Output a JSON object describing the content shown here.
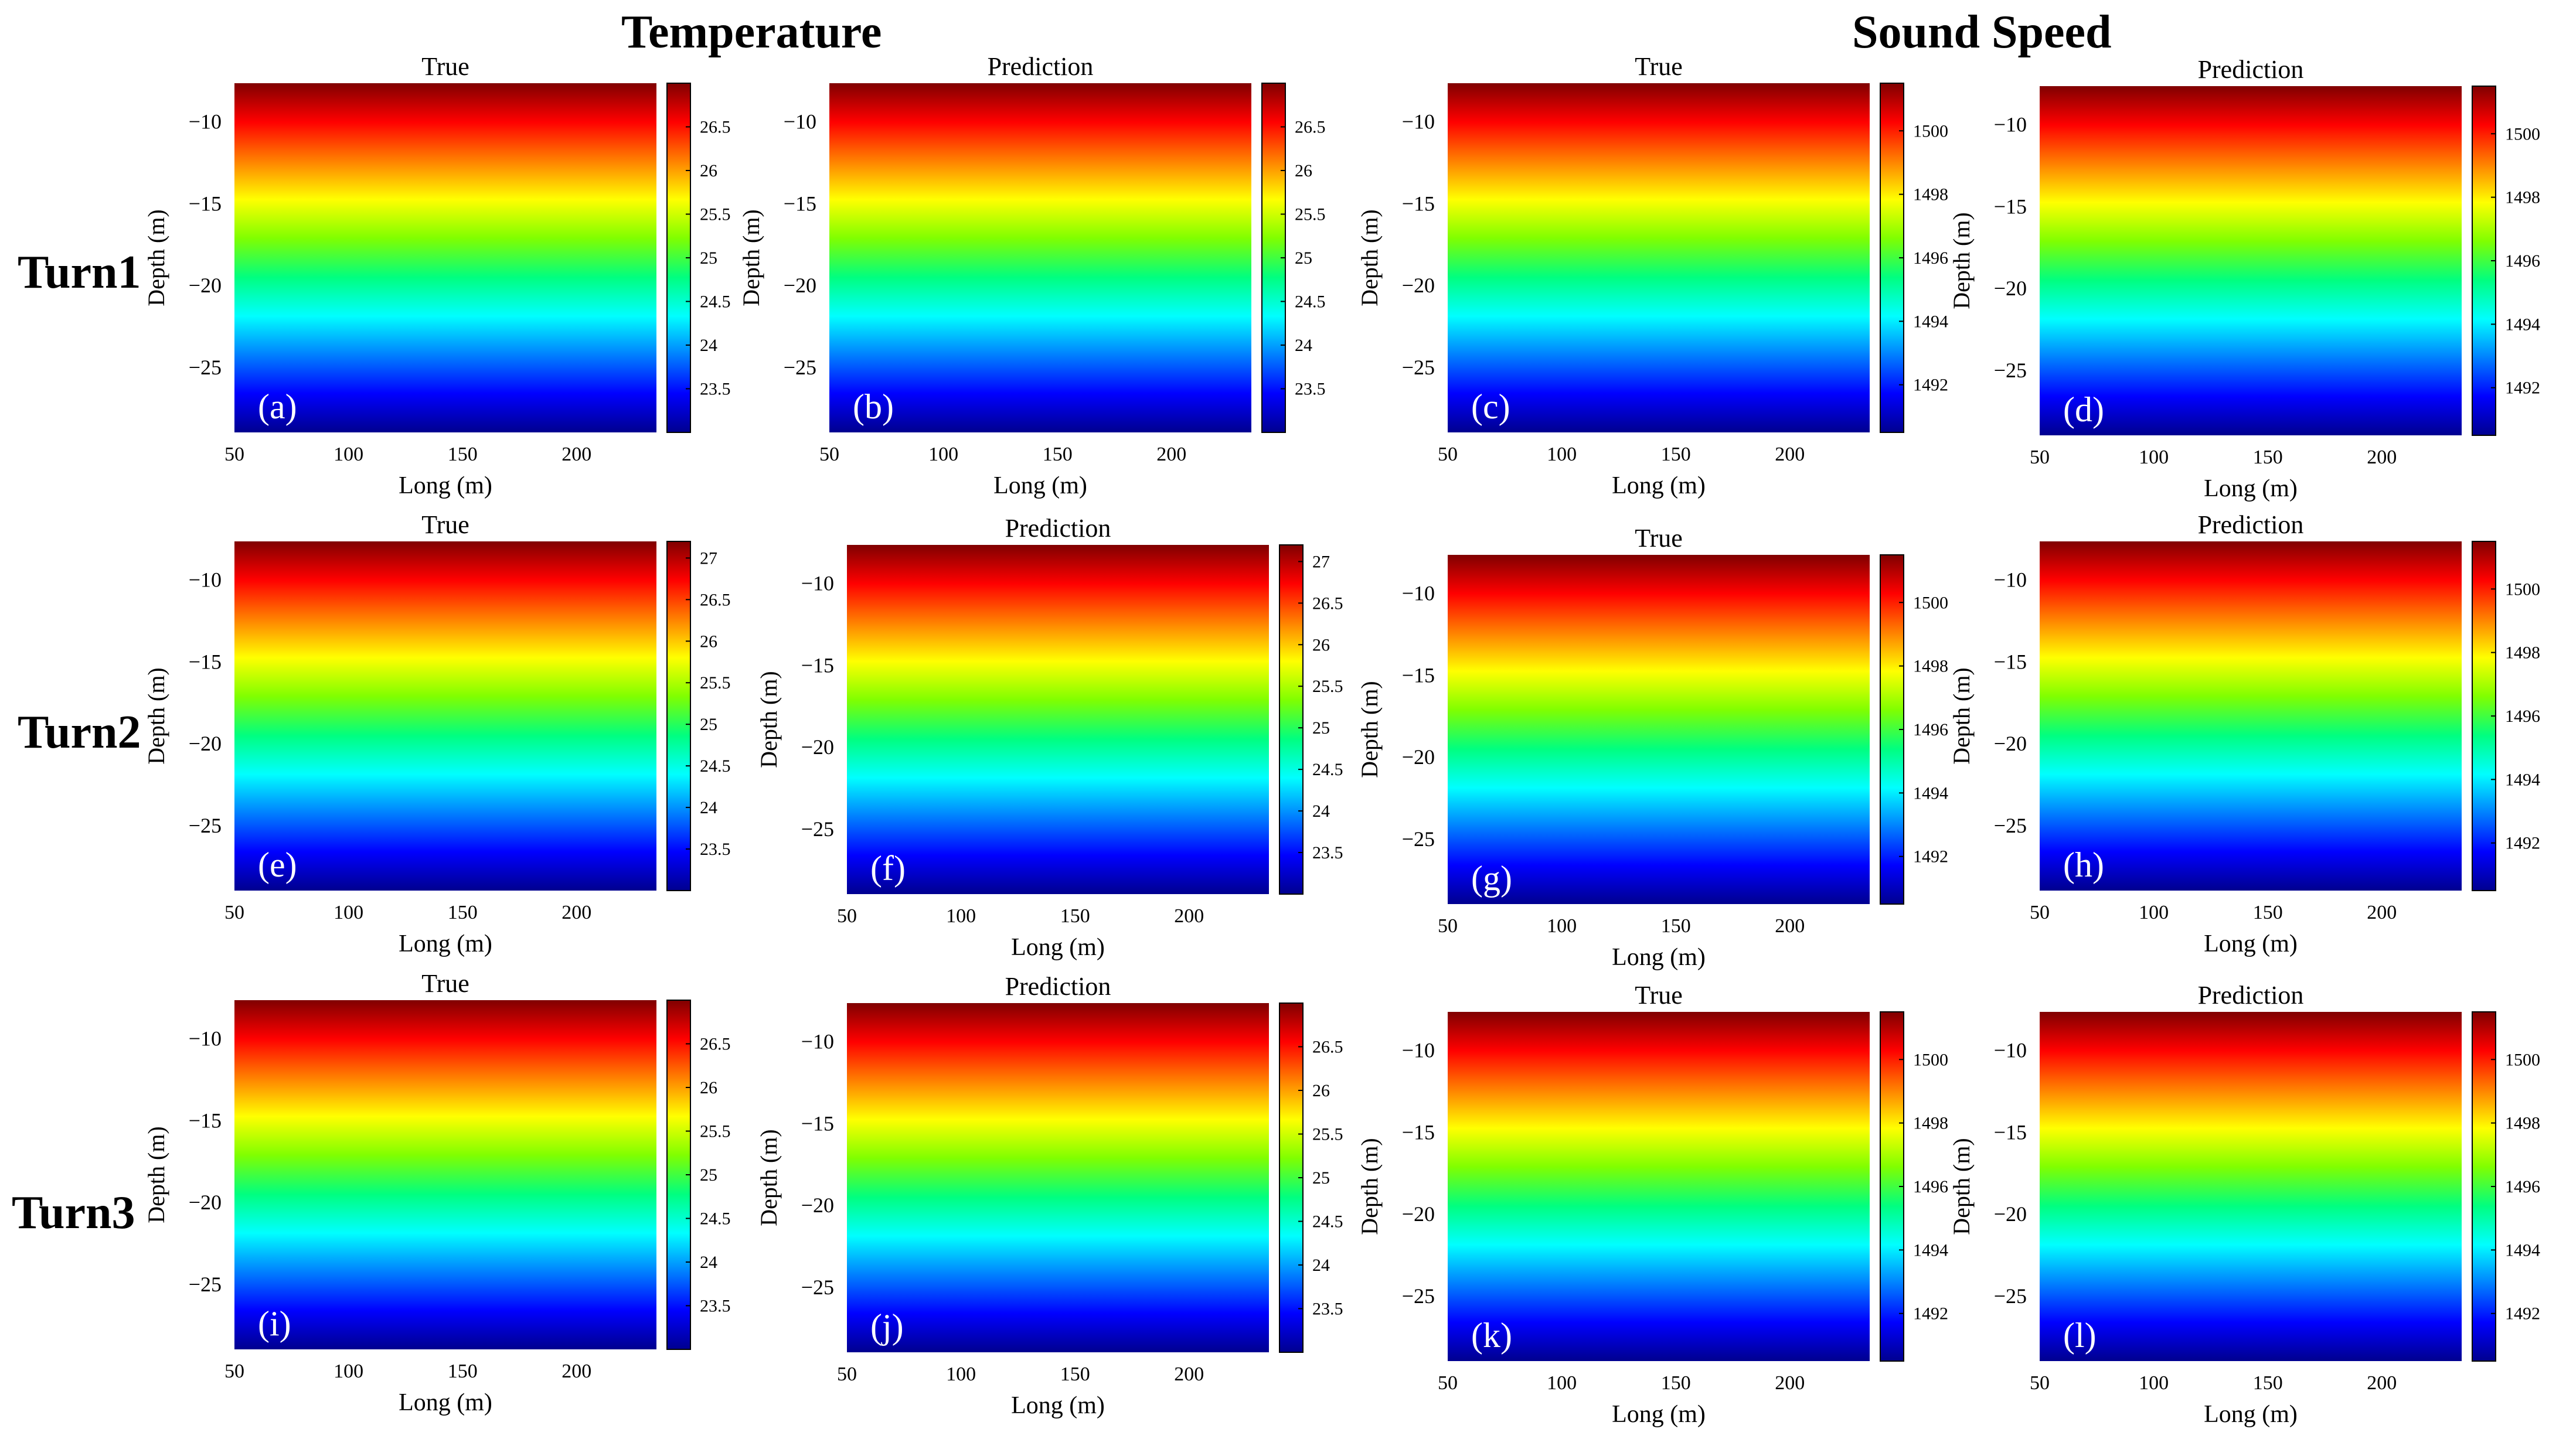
{
  "figure": {
    "group_titles": [
      "Temperature",
      "Sound Speed"
    ],
    "row_labels": [
      "Turn1",
      "Turn2",
      "Turn3"
    ]
  },
  "colors": {
    "colormap_jet": [
      "#00008f",
      "#0000ff",
      "#0080ff",
      "#00ffff",
      "#00ff80",
      "#80ff00",
      "#ffff00",
      "#ff8000",
      "#ff0000",
      "#800000"
    ],
    "panel_label_text": "#ffffff",
    "axis_text": "#000000"
  },
  "chart_data": [
    {
      "id": "a",
      "type": "heatmap",
      "title": "True",
      "panel_label": "(a)",
      "quantity": "Temperature",
      "xlabel": "Long (m)",
      "ylabel": "Depth (m)",
      "xlim": [
        50,
        235
      ],
      "ylim": [
        -29,
        -7.7
      ],
      "x_ticks": [
        "50",
        "100",
        "150",
        "200"
      ],
      "y_ticks": [
        "-10",
        "-15",
        "-20",
        "-25"
      ],
      "colorbar": {
        "range": [
          23.0,
          27.0
        ],
        "ticks": [
          "23.5",
          "24",
          "24.5",
          "25",
          "25.5",
          "26",
          "26.5"
        ]
      }
    },
    {
      "id": "b",
      "type": "heatmap",
      "title": "Prediction",
      "panel_label": "(b)",
      "quantity": "Temperature",
      "xlabel": "Long (m)",
      "ylabel": "Depth (m)",
      "xlim": [
        50,
        235
      ],
      "ylim": [
        -29,
        -7.7
      ],
      "x_ticks": [
        "50",
        "100",
        "150",
        "200"
      ],
      "y_ticks": [
        "-10",
        "-15",
        "-20",
        "-25"
      ],
      "colorbar": {
        "range": [
          23.0,
          27.0
        ],
        "ticks": [
          "23.5",
          "24",
          "24.5",
          "25",
          "25.5",
          "26",
          "26.5"
        ]
      }
    },
    {
      "id": "c",
      "type": "heatmap",
      "title": "True",
      "panel_label": "(c)",
      "quantity": "Sound Speed",
      "xlabel": "Long (m)",
      "ylabel": "Depth (m)",
      "xlim": [
        50,
        235
      ],
      "ylim": [
        -29,
        -7.7
      ],
      "x_ticks": [
        "50",
        "100",
        "150",
        "200"
      ],
      "y_ticks": [
        "-10",
        "-15",
        "-20",
        "-25"
      ],
      "colorbar": {
        "range": [
          1490.5,
          1501.5
        ],
        "ticks": [
          "1492",
          "1494",
          "1496",
          "1498",
          "1500"
        ]
      }
    },
    {
      "id": "d",
      "type": "heatmap",
      "title": "Prediction",
      "panel_label": "(d)",
      "quantity": "Sound Speed",
      "xlabel": "Long (m)",
      "ylabel": "Depth (m)",
      "xlim": [
        50,
        235
      ],
      "ylim": [
        -29,
        -7.7
      ],
      "x_ticks": [
        "50",
        "100",
        "150",
        "200"
      ],
      "y_ticks": [
        "-10",
        "-15",
        "-20",
        "-25"
      ],
      "colorbar": {
        "range": [
          1490.5,
          1501.5
        ],
        "ticks": [
          "1492",
          "1494",
          "1496",
          "1498",
          "1500"
        ]
      }
    },
    {
      "id": "e",
      "type": "heatmap",
      "title": "True",
      "panel_label": "(e)",
      "quantity": "Temperature",
      "xlabel": "Long (m)",
      "ylabel": "Depth (m)",
      "xlim": [
        50,
        235
      ],
      "ylim": [
        -29,
        -7.7
      ],
      "x_ticks": [
        "50",
        "100",
        "150",
        "200"
      ],
      "y_ticks": [
        "-10",
        "-15",
        "-20",
        "-25"
      ],
      "colorbar": {
        "range": [
          23.0,
          27.2
        ],
        "ticks": [
          "23.5",
          "24",
          "24.5",
          "25",
          "25.5",
          "26",
          "26.5",
          "27"
        ]
      }
    },
    {
      "id": "f",
      "type": "heatmap",
      "title": "Prediction",
      "panel_label": "(f)",
      "quantity": "Temperature",
      "xlabel": "Long (m)",
      "ylabel": "Depth (m)",
      "xlim": [
        50,
        235
      ],
      "ylim": [
        -29,
        -7.7
      ],
      "x_ticks": [
        "50",
        "100",
        "150",
        "200"
      ],
      "y_ticks": [
        "-10",
        "-15",
        "-20",
        "-25"
      ],
      "colorbar": {
        "range": [
          23.0,
          27.2
        ],
        "ticks": [
          "23.5",
          "24",
          "24.5",
          "25",
          "25.5",
          "26",
          "26.5",
          "27"
        ]
      }
    },
    {
      "id": "g",
      "type": "heatmap",
      "title": "True",
      "panel_label": "(g)",
      "quantity": "Sound Speed",
      "xlabel": "Long (m)",
      "ylabel": "Depth (m)",
      "xlim": [
        50,
        235
      ],
      "ylim": [
        -29,
        -7.7
      ],
      "x_ticks": [
        "50",
        "100",
        "150",
        "200"
      ],
      "y_ticks": [
        "-10",
        "-15",
        "-20",
        "-25"
      ],
      "colorbar": {
        "range": [
          1490.5,
          1501.5
        ],
        "ticks": [
          "1492",
          "1494",
          "1496",
          "1498",
          "1500"
        ]
      }
    },
    {
      "id": "h",
      "type": "heatmap",
      "title": "Prediction",
      "panel_label": "(h)",
      "quantity": "Sound Speed",
      "xlabel": "Long (m)",
      "ylabel": "Depth (m)",
      "xlim": [
        50,
        235
      ],
      "ylim": [
        -29,
        -7.7
      ],
      "x_ticks": [
        "50",
        "100",
        "150",
        "200"
      ],
      "y_ticks": [
        "-10",
        "-15",
        "-20",
        "-25"
      ],
      "colorbar": {
        "range": [
          1490.5,
          1501.5
        ],
        "ticks": [
          "1492",
          "1494",
          "1496",
          "1498",
          "1500"
        ]
      }
    },
    {
      "id": "i",
      "type": "heatmap",
      "title": "True",
      "panel_label": "(i)",
      "quantity": "Temperature",
      "xlabel": "Long (m)",
      "ylabel": "Depth (m)",
      "xlim": [
        50,
        235
      ],
      "ylim": [
        -29,
        -7.7
      ],
      "x_ticks": [
        "50",
        "100",
        "150",
        "200"
      ],
      "y_ticks": [
        "-10",
        "-15",
        "-20",
        "-25"
      ],
      "colorbar": {
        "range": [
          23.0,
          27.0
        ],
        "ticks": [
          "23.5",
          "24",
          "24.5",
          "25",
          "25.5",
          "26",
          "26.5"
        ]
      }
    },
    {
      "id": "j",
      "type": "heatmap",
      "title": "Prediction",
      "panel_label": "(j)",
      "quantity": "Temperature",
      "xlabel": "Long (m)",
      "ylabel": "Depth (m)",
      "xlim": [
        50,
        235
      ],
      "ylim": [
        -29,
        -7.7
      ],
      "x_ticks": [
        "50",
        "100",
        "150",
        "200"
      ],
      "y_ticks": [
        "-10",
        "-15",
        "-20",
        "-25"
      ],
      "colorbar": {
        "range": [
          23.0,
          27.0
        ],
        "ticks": [
          "23.5",
          "24",
          "24.5",
          "25",
          "25.5",
          "26",
          "26.5"
        ]
      }
    },
    {
      "id": "k",
      "type": "heatmap",
      "title": "True",
      "panel_label": "(k)",
      "quantity": "Sound Speed",
      "xlabel": "Long (m)",
      "ylabel": "Depth (m)",
      "xlim": [
        50,
        235
      ],
      "ylim": [
        -29,
        -7.7
      ],
      "x_ticks": [
        "50",
        "100",
        "150",
        "200"
      ],
      "y_ticks": [
        "-10",
        "-15",
        "-20",
        "-25"
      ],
      "colorbar": {
        "range": [
          1490.5,
          1501.5
        ],
        "ticks": [
          "1492",
          "1494",
          "1496",
          "1498",
          "1500"
        ]
      }
    },
    {
      "id": "l",
      "type": "heatmap",
      "title": "Prediction",
      "panel_label": "(l)",
      "quantity": "Sound Speed",
      "xlabel": "Long (m)",
      "ylabel": "Depth (m)",
      "xlim": [
        50,
        235
      ],
      "ylim": [
        -29,
        -7.7
      ],
      "x_ticks": [
        "50",
        "100",
        "150",
        "200"
      ],
      "y_ticks": [
        "-10",
        "-15",
        "-20",
        "-25"
      ],
      "colorbar": {
        "range": [
          1490.5,
          1501.5
        ],
        "ticks": [
          "1492",
          "1494",
          "1496",
          "1498",
          "1500"
        ]
      }
    }
  ]
}
